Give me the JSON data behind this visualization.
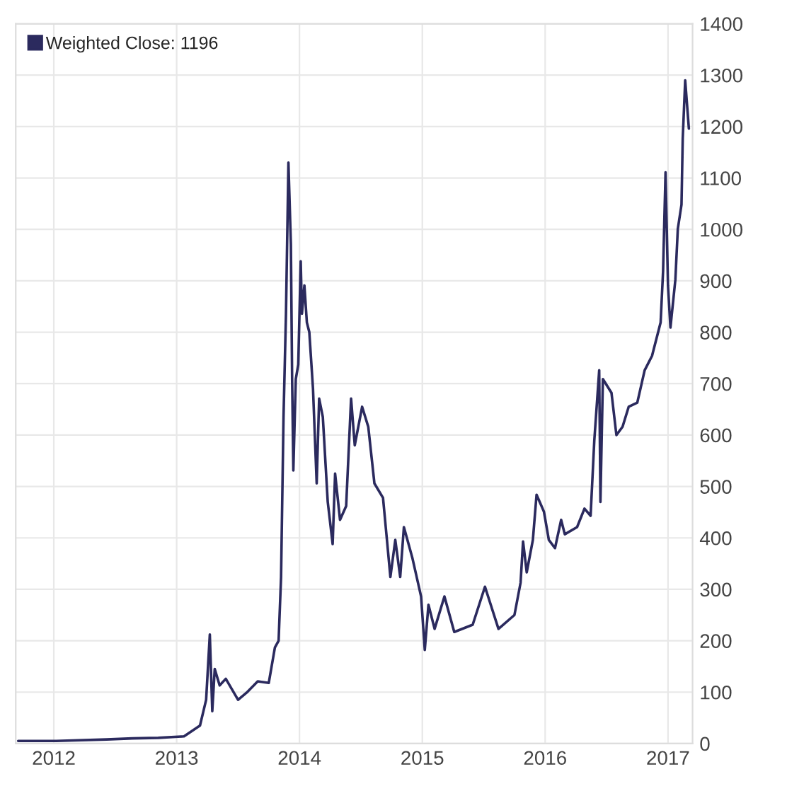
{
  "chart_data": {
    "type": "line",
    "x": [
      2011.71,
      2012.02,
      2012.43,
      2012.64,
      2012.85,
      2013.06,
      2013.19,
      2013.24,
      2013.27,
      2013.29,
      2013.31,
      2013.35,
      2013.4,
      2013.5,
      2013.57,
      2013.66,
      2013.75,
      2013.8,
      2013.83,
      2013.85,
      2013.87,
      2013.89,
      2013.91,
      2013.93,
      2013.94,
      2013.95,
      2013.97,
      2013.99,
      2014.01,
      2014.02,
      2014.04,
      2014.06,
      2014.08,
      2014.11,
      2014.14,
      2014.16,
      2014.19,
      2014.23,
      2014.27,
      2014.29,
      2014.33,
      2014.38,
      2014.42,
      2014.45,
      2014.51,
      2014.56,
      2014.61,
      2014.68,
      2014.74,
      2014.78,
      2014.82,
      2014.85,
      2014.92,
      2014.99,
      2015.02,
      2015.05,
      2015.1,
      2015.18,
      2015.26,
      2015.41,
      2015.51,
      2015.62,
      2015.75,
      2015.8,
      2015.82,
      2015.85,
      2015.9,
      2015.93,
      2015.99,
      2016.03,
      2016.08,
      2016.13,
      2016.16,
      2016.26,
      2016.32,
      2016.37,
      2016.4,
      2016.44,
      2016.45,
      2016.47,
      2016.54,
      2016.58,
      2016.63,
      2016.68,
      2016.75,
      2016.81,
      2016.87,
      2016.94,
      2016.96,
      2016.98,
      2017.0,
      2017.02,
      2017.06,
      2017.08,
      2017.11,
      2017.12,
      2017.14,
      2017.17
    ],
    "series": [
      {
        "name": "Weighted Close: 1196",
        "color": "#2b2a5e",
        "values": [
          5,
          5,
          8,
          10,
          11,
          14,
          35,
          85,
          212,
          63,
          145,
          113,
          126,
          85,
          99,
          121,
          118,
          187,
          200,
          324,
          635,
          836,
          1130,
          971,
          709,
          531,
          709,
          737,
          938,
          836,
          891,
          819,
          800,
          690,
          506,
          671,
          635,
          470,
          388,
          525,
          435,
          462,
          671,
          580,
          655,
          616,
          506,
          478,
          324,
          396,
          324,
          421,
          360,
          286,
          182,
          270,
          223,
          286,
          217,
          231,
          305,
          223,
          250,
          313,
          393,
          333,
          396,
          484,
          451,
          396,
          380,
          435,
          407,
          421,
          457,
          443,
          589,
          726,
          470,
          709,
          682,
          600,
          616,
          655,
          663,
          726,
          754,
          819,
          919,
          1111,
          891,
          809,
          902,
          1001,
          1048,
          1177,
          1290,
          1196
        ]
      }
    ],
    "xlim": [
      2011.69,
      2017.2
    ],
    "xticks": [
      2012,
      2013,
      2014,
      2015,
      2016,
      2017
    ],
    "ylim": [
      0,
      1400
    ],
    "yticks": [
      0,
      100,
      200,
      300,
      400,
      500,
      600,
      700,
      800,
      900,
      1000,
      1100,
      1200,
      1300,
      1400
    ],
    "grid": true,
    "legend": "top left",
    "marker": "none",
    "line_style": "solid"
  }
}
